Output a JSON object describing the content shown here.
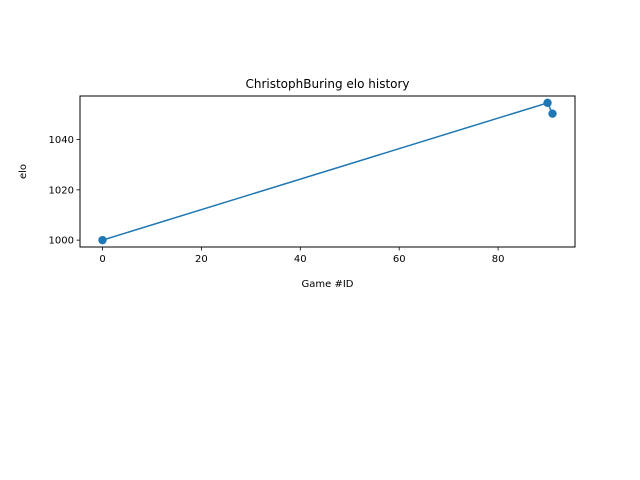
{
  "chart_data": {
    "type": "line",
    "title": "ChristophBuring elo history",
    "xlabel": "Game #ID",
    "ylabel": "elo",
    "xlim": [
      -4.55,
      95.55
    ],
    "ylim": [
      997.27,
      1057.33
    ],
    "xticks": [
      0,
      20,
      40,
      60,
      80
    ],
    "yticks": [
      1000,
      1020,
      1040
    ],
    "xtick_labels": [
      "0",
      "20",
      "40",
      "60",
      "80"
    ],
    "ytick_labels": [
      "1000",
      "1020",
      "1040"
    ],
    "grid": false,
    "legend": "none",
    "series": [
      {
        "x": [
          0,
          90,
          91
        ],
        "y": [
          1000,
          1054.6,
          1050.3
        ],
        "color": "#1f77b4",
        "marker": "circle"
      }
    ]
  }
}
